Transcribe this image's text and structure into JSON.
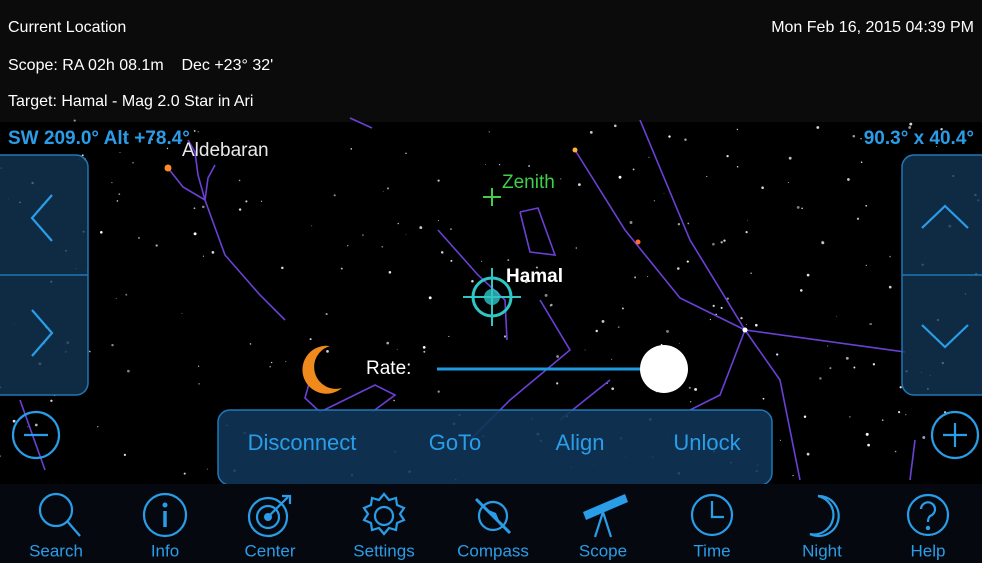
{
  "status": {
    "location": "Current Location",
    "datetime": "Mon Feb 16, 2015  04:39 PM",
    "scope": "Scope: RA 02h 08.1m    Dec +23° 32'",
    "target": "Target: Hamal - Mag 2.0 Star in Ari"
  },
  "sky": {
    "orientation": "SW 209.0° Alt +78.4°",
    "field_of_view": "90.3° x 40.4°",
    "labels": {
      "aldebaran": "Aldebaran",
      "zenith": "Zenith",
      "hamal": "Hamal"
    }
  },
  "rate": {
    "label": "Rate:"
  },
  "actions": [
    "Disconnect",
    "GoTo",
    "Align",
    "Unlock"
  ],
  "toolbar": [
    "Search",
    "Info",
    "Center",
    "Settings",
    "Compass",
    "Scope",
    "Time",
    "Night",
    "Help"
  ]
}
